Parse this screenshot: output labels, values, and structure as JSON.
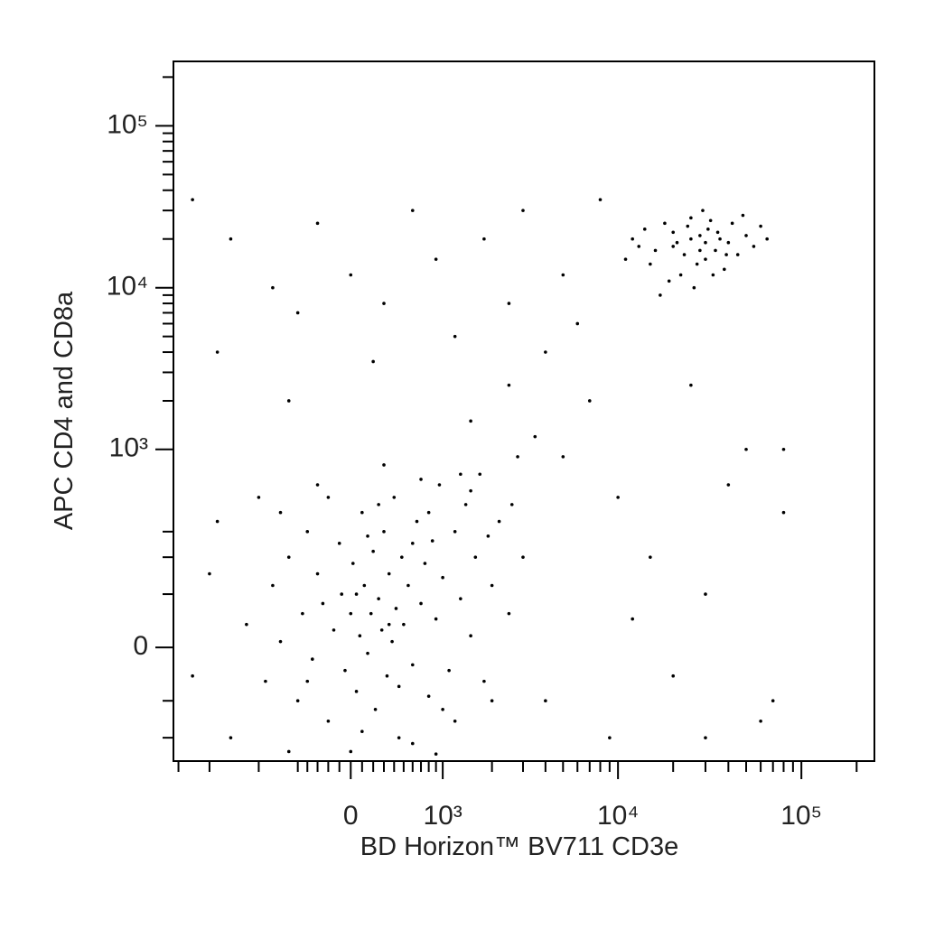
{
  "chart_data": {
    "type": "scatter",
    "xlabel": "BD Horizon™ BV711 CD3e",
    "ylabel": "APC CD4 and CD8a",
    "xscale": "biexponential",
    "yscale": "biexponential",
    "color": "#000000",
    "xlim": [
      -3200,
      250000
    ],
    "ylim": [
      -290,
      250000
    ],
    "xticks": [
      0,
      {
        "value": 1000,
        "label": "10³"
      },
      {
        "value": 10000,
        "label": "10⁴"
      },
      {
        "value": 100000,
        "label": "10⁵"
      }
    ],
    "yticks": [
      0,
      {
        "value": 1000,
        "label": "10³"
      },
      {
        "value": 10000,
        "label": "10⁴"
      },
      {
        "value": 100000,
        "label": "10⁵"
      }
    ],
    "xminor_ticks": [
      -3000,
      -2000,
      -1000,
      -500,
      -400,
      -300,
      -200,
      -100,
      100,
      200,
      300,
      400,
      500,
      600,
      700,
      800,
      900,
      2000,
      3000,
      4000,
      5000,
      6000,
      7000,
      8000,
      9000,
      20000,
      30000,
      40000,
      50000,
      60000,
      70000,
      80000,
      90000,
      200000
    ],
    "yminor_ticks": [
      -200,
      -100,
      100,
      200,
      300,
      2000,
      3000,
      4000,
      5000,
      6000,
      7000,
      8000,
      9000,
      20000,
      30000,
      40000,
      50000,
      60000,
      70000,
      80000,
      90000,
      200000
    ],
    "x": [
      -1200,
      -900,
      -800,
      -700,
      -600,
      -500,
      -450,
      -400,
      -350,
      -300,
      -250,
      -200,
      -150,
      -100,
      -80,
      -50,
      0,
      20,
      50,
      80,
      100,
      120,
      150,
      180,
      200,
      220,
      250,
      280,
      300,
      330,
      350,
      380,
      400,
      420,
      450,
      480,
      500,
      550,
      600,
      650,
      700,
      750,
      800,
      850,
      900,
      950,
      1000,
      1100,
      1200,
      1300,
      1400,
      1500,
      1600,
      1700,
      1800,
      2000,
      2200,
      2500,
      2800,
      3000,
      -1500,
      -1000,
      -600,
      -300,
      0,
      300,
      600,
      900,
      1200,
      -2000,
      -2500,
      -1800,
      100,
      250,
      700,
      1500,
      2000,
      -700,
      450,
      150,
      -200,
      600,
      1000,
      50,
      350,
      -400,
      800,
      1300,
      1900,
      2600,
      20000,
      25000,
      30000,
      35000,
      28000,
      15000,
      18000,
      40000,
      22000,
      32000,
      45000,
      12000,
      26000,
      38000,
      50000,
      16000,
      24000,
      30000,
      27000,
      20000,
      34000,
      42000,
      19000,
      55000,
      14000,
      29000,
      36000,
      23000,
      60000,
      11000,
      17000,
      48000,
      33000,
      21000,
      28000,
      39000,
      25000,
      65000,
      31000,
      13000,
      -2500,
      -1500,
      -800,
      -500,
      -300,
      0,
      300,
      600,
      900,
      1200,
      1800,
      2500,
      3000,
      4000,
      5000,
      6000,
      7000,
      8000,
      -1800,
      -600,
      200,
      1500,
      2500,
      3500,
      5000,
      10000,
      15000,
      20000,
      30000,
      40000,
      50000,
      70000,
      80000,
      25000,
      60000,
      9000,
      4000,
      12000,
      30000,
      80000
    ],
    "y": [
      40,
      -60,
      120,
      10,
      200,
      -100,
      60,
      300,
      -20,
      150,
      80,
      -150,
      30,
      250,
      100,
      -40,
      60,
      180,
      -80,
      20,
      400,
      120,
      -10,
      60,
      220,
      -120,
      90,
      30,
      300,
      -50,
      150,
      10,
      500,
      70,
      -200,
      200,
      40,
      120,
      -30,
      350,
      80,
      180,
      -90,
      260,
      50,
      600,
      140,
      -40,
      300,
      90,
      450,
      20,
      200,
      700,
      -60,
      120,
      350,
      60,
      900,
      200,
      -200,
      500,
      -250,
      600,
      -250,
      800,
      -220,
      -260,
      -150,
      150,
      -50,
      350,
      -180,
      450,
      650,
      550,
      -100,
      400,
      -70,
      280,
      500,
      250,
      -120,
      100,
      40,
      -60,
      400,
      700,
      280,
      450,
      18000,
      20000,
      15000,
      22000,
      17000,
      14000,
      25000,
      19000,
      12000,
      26000,
      16000,
      20000,
      10000,
      13000,
      21000,
      17000,
      24000,
      19000,
      14000,
      22000,
      17000,
      25000,
      11000,
      18000,
      23000,
      30000,
      20000,
      16000,
      24000,
      15000,
      9000,
      28000,
      12000,
      19000,
      21000,
      16000,
      27000,
      20000,
      23000,
      18000,
      35000,
      20000,
      10000,
      7000,
      25000,
      12000,
      8000,
      30000,
      15000,
      5000,
      20000,
      8000,
      30000,
      4000,
      12000,
      6000,
      2000,
      35000,
      4000,
      2000,
      3500,
      1500,
      2500,
      1200,
      900,
      500,
      200,
      -50,
      100,
      600,
      1000,
      -100,
      400,
      2500,
      -150,
      -200,
      -100,
      50,
      -200,
      1000
    ]
  }
}
